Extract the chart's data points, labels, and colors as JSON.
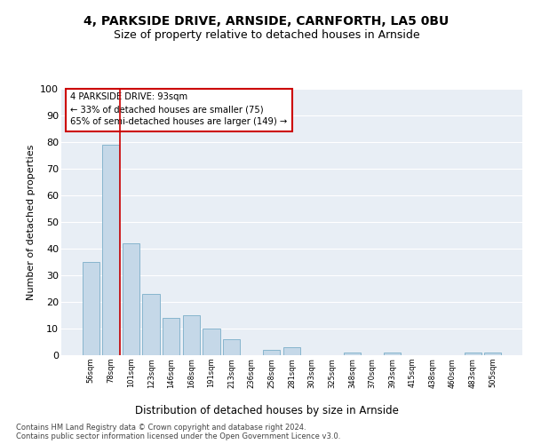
{
  "title1": "4, PARKSIDE DRIVE, ARNSIDE, CARNFORTH, LA5 0BU",
  "title2": "Size of property relative to detached houses in Arnside",
  "xlabel": "Distribution of detached houses by size in Arnside",
  "ylabel": "Number of detached properties",
  "categories": [
    "56sqm",
    "78sqm",
    "101sqm",
    "123sqm",
    "146sqm",
    "168sqm",
    "191sqm",
    "213sqm",
    "236sqm",
    "258sqm",
    "281sqm",
    "303sqm",
    "325sqm",
    "348sqm",
    "370sqm",
    "393sqm",
    "415sqm",
    "438sqm",
    "460sqm",
    "483sqm",
    "505sqm"
  ],
  "values": [
    35,
    79,
    42,
    23,
    14,
    15,
    10,
    6,
    0,
    2,
    3,
    0,
    0,
    1,
    0,
    1,
    0,
    0,
    0,
    1,
    1
  ],
  "bar_color": "#c5d8e8",
  "bar_edge_color": "#7aaec8",
  "annotation_title": "4 PARKSIDE DRIVE: 93sqm",
  "annotation_line1": "← 33% of detached houses are smaller (75)",
  "annotation_line2": "65% of semi-detached houses are larger (149) →",
  "box_color": "#cc0000",
  "footer1": "Contains HM Land Registry data © Crown copyright and database right 2024.",
  "footer2": "Contains public sector information licensed under the Open Government Licence v3.0.",
  "ylim": [
    0,
    100
  ],
  "yticks": [
    0,
    10,
    20,
    30,
    40,
    50,
    60,
    70,
    80,
    90,
    100
  ],
  "plot_bg": "#e8eef5",
  "title1_fontsize": 10,
  "title2_fontsize": 9,
  "red_line_x": 1.45
}
